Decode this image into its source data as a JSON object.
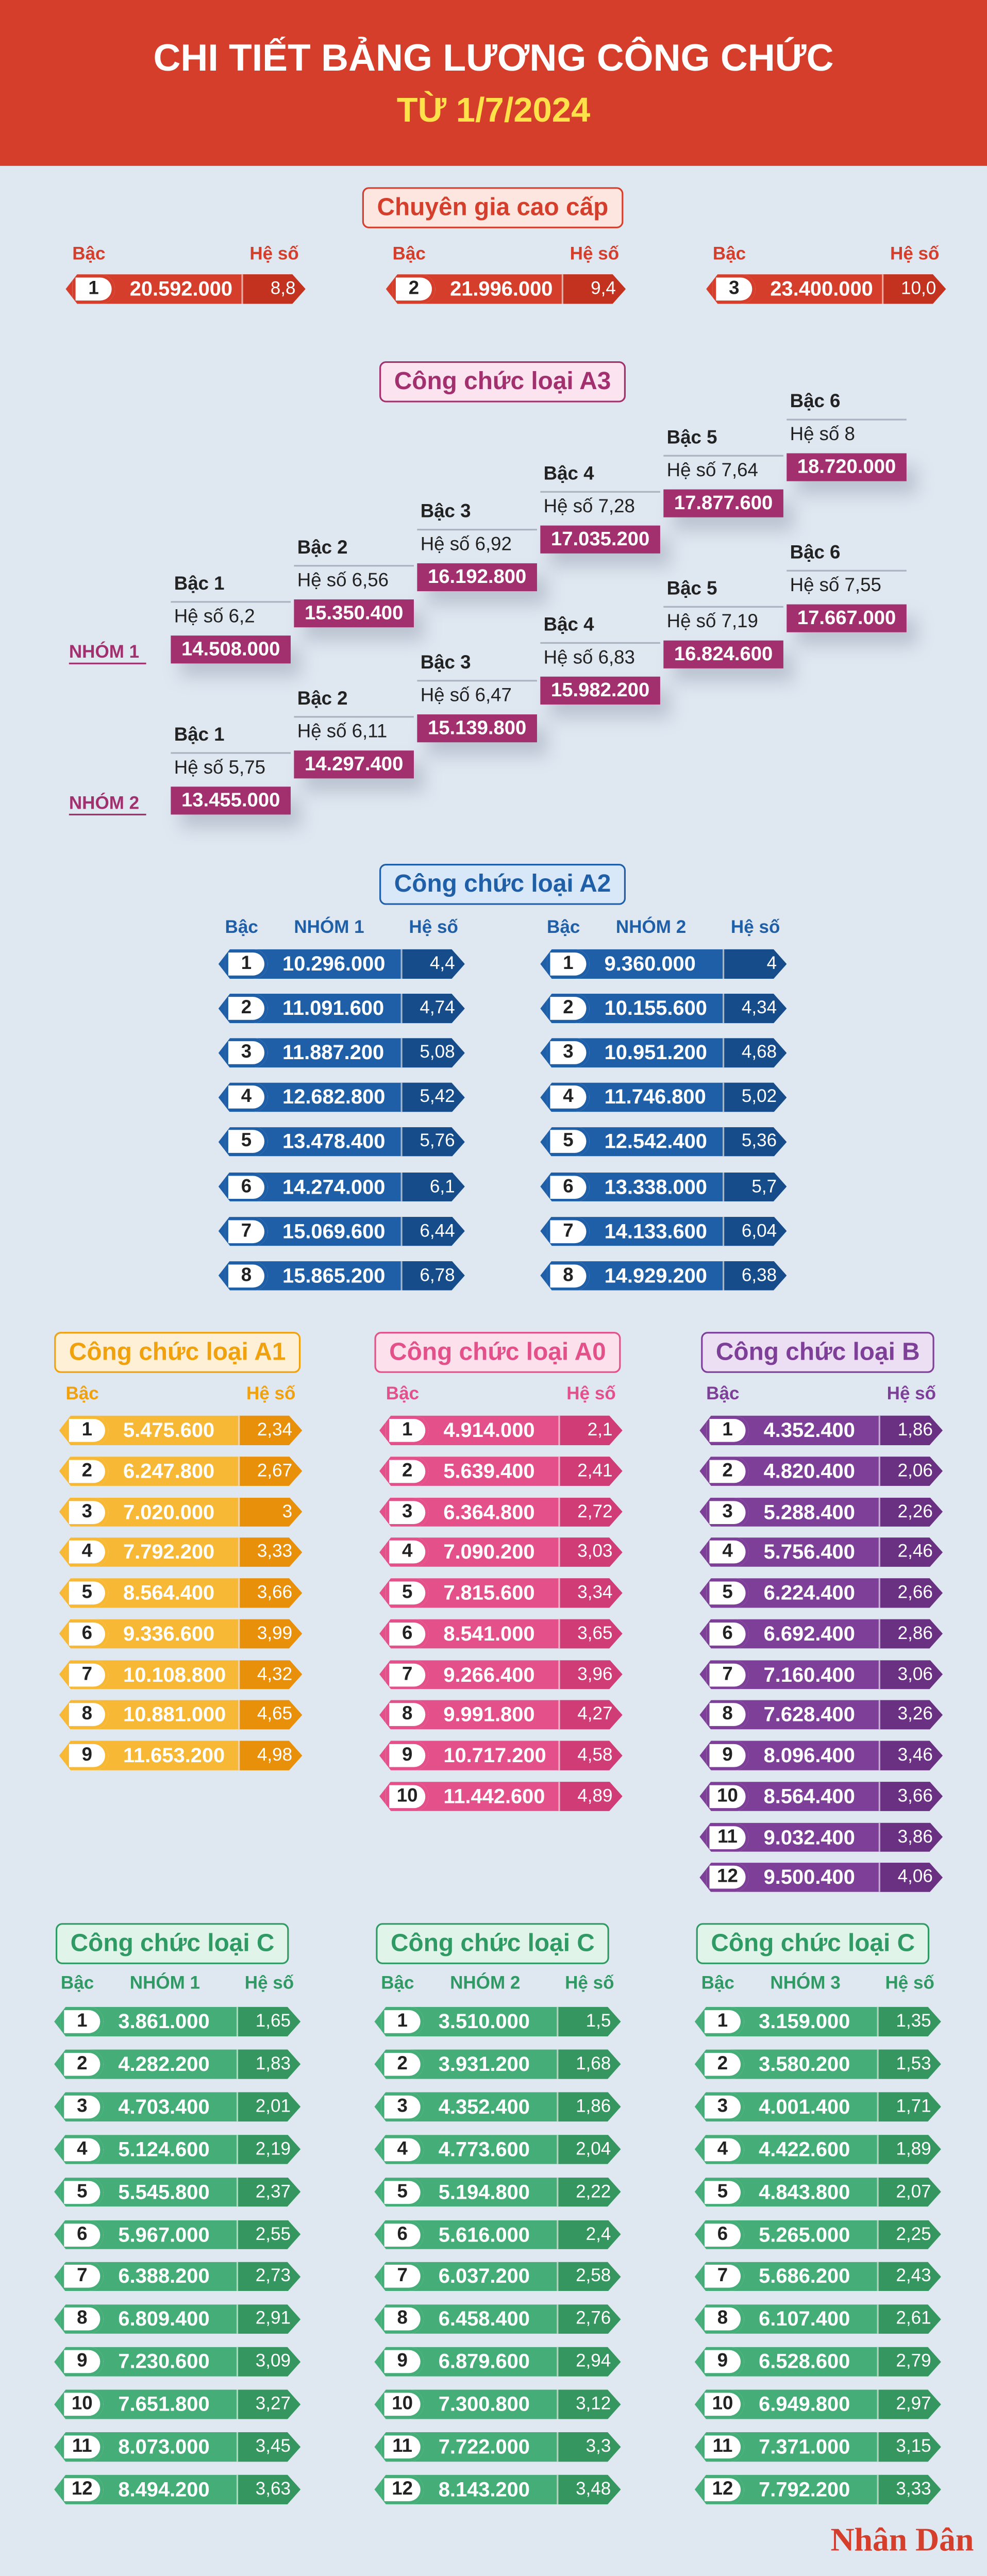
{
  "header": {
    "title": "CHI TIẾT BẢNG LƯƠNG CÔNG CHỨC",
    "subtitle": "TỪ 1/7/2024"
  },
  "labels": {
    "level": "Bậc",
    "coef": "Hệ số"
  },
  "expert": {
    "title": "Chuyên gia cao cấp",
    "rows": [
      [
        "1",
        "20.592.000",
        "8,8"
      ],
      [
        "2",
        "21.996.000",
        "9,4"
      ],
      [
        "3",
        "23.400.000",
        "10,0"
      ]
    ]
  },
  "grade_a3": {
    "title": "Công chức loại A3",
    "groups": [
      {
        "name": "NHÓM 1",
        "steps": [
          {
            "level": "Bậc 1",
            "coef": "Hệ số 6,2",
            "salary": "14.508.000"
          },
          {
            "level": "Bậc 2",
            "coef": "Hệ số 6,56",
            "salary": "15.350.400"
          },
          {
            "level": "Bậc 3",
            "coef": "Hệ số 6,92",
            "salary": "16.192.800"
          },
          {
            "level": "Bậc 4",
            "coef": "Hệ số 7,28",
            "salary": "17.035.200"
          },
          {
            "level": "Bậc 5",
            "coef": "Hệ số 7,64",
            "salary": "17.877.600"
          },
          {
            "level": "Bậc 6",
            "coef": "Hệ số 8",
            "salary": "18.720.000"
          }
        ]
      },
      {
        "name": "NHÓM 2",
        "steps": [
          {
            "level": "Bậc 1",
            "coef": "Hệ số 5,75",
            "salary": "13.455.000"
          },
          {
            "level": "Bậc 2",
            "coef": "Hệ số 6,11",
            "salary": "14.297.400"
          },
          {
            "level": "Bậc 3",
            "coef": "Hệ số 6,47",
            "salary": "15.139.800"
          },
          {
            "level": "Bậc 4",
            "coef": "Hệ số 6,83",
            "salary": "15.982.200"
          },
          {
            "level": "Bậc 5",
            "coef": "Hệ số 7,19",
            "salary": "16.824.600"
          },
          {
            "level": "Bậc 6",
            "coef": "Hệ số 7,55",
            "salary": "17.667.000"
          }
        ]
      }
    ]
  },
  "grade_a2": {
    "title": "Công chức loại A2",
    "groups": [
      {
        "name": "NHÓM 1",
        "rows": [
          [
            "1",
            "10.296.000",
            "4,4"
          ],
          [
            "2",
            "11.091.600",
            "4,74"
          ],
          [
            "3",
            "11.887.200",
            "5,08"
          ],
          [
            "4",
            "12.682.800",
            "5,42"
          ],
          [
            "5",
            "13.478.400",
            "5,76"
          ],
          [
            "6",
            "14.274.000",
            "6,1"
          ],
          [
            "7",
            "15.069.600",
            "6,44"
          ],
          [
            "8",
            "15.865.200",
            "6,78"
          ]
        ]
      },
      {
        "name": "NHÓM 2",
        "rows": [
          [
            "1",
            "9.360.000",
            "4"
          ],
          [
            "2",
            "10.155.600",
            "4,34"
          ],
          [
            "3",
            "10.951.200",
            "4,68"
          ],
          [
            "4",
            "11.746.800",
            "5,02"
          ],
          [
            "5",
            "12.542.400",
            "5,36"
          ],
          [
            "6",
            "13.338.000",
            "5,7"
          ],
          [
            "7",
            "14.133.600",
            "6,04"
          ],
          [
            "8",
            "14.929.200",
            "6,38"
          ]
        ]
      }
    ]
  },
  "grade_a1": {
    "title": "Công chức loại A1",
    "rows": [
      [
        "1",
        "5.475.600",
        "2,34"
      ],
      [
        "2",
        "6.247.800",
        "2,67"
      ],
      [
        "3",
        "7.020.000",
        "3"
      ],
      [
        "4",
        "7.792.200",
        "3,33"
      ],
      [
        "5",
        "8.564.400",
        "3,66"
      ],
      [
        "6",
        "9.336.600",
        "3,99"
      ],
      [
        "7",
        "10.108.800",
        "4,32"
      ],
      [
        "8",
        "10.881.000",
        "4,65"
      ],
      [
        "9",
        "11.653.200",
        "4,98"
      ]
    ]
  },
  "grade_a0": {
    "title": "Công chức loại A0",
    "rows": [
      [
        "1",
        "4.914.000",
        "2,1"
      ],
      [
        "2",
        "5.639.400",
        "2,41"
      ],
      [
        "3",
        "6.364.800",
        "2,72"
      ],
      [
        "4",
        "7.090.200",
        "3,03"
      ],
      [
        "5",
        "7.815.600",
        "3,34"
      ],
      [
        "6",
        "8.541.000",
        "3,65"
      ],
      [
        "7",
        "9.266.400",
        "3,96"
      ],
      [
        "8",
        "9.991.800",
        "4,27"
      ],
      [
        "9",
        "10.717.200",
        "4,58"
      ],
      [
        "10",
        "11.442.600",
        "4,89"
      ]
    ]
  },
  "grade_b": {
    "title": "Công chức loại B",
    "rows": [
      [
        "1",
        "4.352.400",
        "1,86"
      ],
      [
        "2",
        "4.820.400",
        "2,06"
      ],
      [
        "3",
        "5.288.400",
        "2,26"
      ],
      [
        "4",
        "5.756.400",
        "2,46"
      ],
      [
        "5",
        "6.224.400",
        "2,66"
      ],
      [
        "6",
        "6.692.400",
        "2,86"
      ],
      [
        "7",
        "7.160.400",
        "3,06"
      ],
      [
        "8",
        "7.628.400",
        "3,26"
      ],
      [
        "9",
        "8.096.400",
        "3,46"
      ],
      [
        "10",
        "8.564.400",
        "3,66"
      ],
      [
        "11",
        "9.032.400",
        "3,86"
      ],
      [
        "12",
        "9.500.400",
        "4,06"
      ]
    ]
  },
  "grade_c": {
    "title": "Công chức loại C",
    "groups": [
      {
        "name": "NHÓM 1",
        "rows": [
          [
            "1",
            "3.861.000",
            "1,65"
          ],
          [
            "2",
            "4.282.200",
            "1,83"
          ],
          [
            "3",
            "4.703.400",
            "2,01"
          ],
          [
            "4",
            "5.124.600",
            "2,19"
          ],
          [
            "5",
            "5.545.800",
            "2,37"
          ],
          [
            "6",
            "5.967.000",
            "2,55"
          ],
          [
            "7",
            "6.388.200",
            "2,73"
          ],
          [
            "8",
            "6.809.400",
            "2,91"
          ],
          [
            "9",
            "7.230.600",
            "3,09"
          ],
          [
            "10",
            "7.651.800",
            "3,27"
          ],
          [
            "11",
            "8.073.000",
            "3,45"
          ],
          [
            "12",
            "8.494.200",
            "3,63"
          ]
        ]
      },
      {
        "name": "NHÓM 2",
        "rows": [
          [
            "1",
            "3.510.000",
            "1,5"
          ],
          [
            "2",
            "3.931.200",
            "1,68"
          ],
          [
            "3",
            "4.352.400",
            "1,86"
          ],
          [
            "4",
            "4.773.600",
            "2,04"
          ],
          [
            "5",
            "5.194.800",
            "2,22"
          ],
          [
            "6",
            "5.616.000",
            "2,4"
          ],
          [
            "7",
            "6.037.200",
            "2,58"
          ],
          [
            "8",
            "6.458.400",
            "2,76"
          ],
          [
            "9",
            "6.879.600",
            "2,94"
          ],
          [
            "10",
            "7.300.800",
            "3,12"
          ],
          [
            "11",
            "7.722.000",
            "3,3"
          ],
          [
            "12",
            "8.143.200",
            "3,48"
          ]
        ]
      },
      {
        "name": "NHÓM 3",
        "rows": [
          [
            "1",
            "3.159.000",
            "1,35"
          ],
          [
            "2",
            "3.580.200",
            "1,53"
          ],
          [
            "3",
            "4.001.400",
            "1,71"
          ],
          [
            "4",
            "4.422.600",
            "1,89"
          ],
          [
            "5",
            "4.843.800",
            "2,07"
          ],
          [
            "6",
            "5.265.000",
            "2,25"
          ],
          [
            "7",
            "5.686.200",
            "2,43"
          ],
          [
            "8",
            "6.107.400",
            "2,61"
          ],
          [
            "9",
            "6.528.600",
            "2,79"
          ],
          [
            "10",
            "6.949.800",
            "2,97"
          ],
          [
            "11",
            "7.371.000",
            "3,15"
          ],
          [
            "12",
            "7.792.200",
            "3,33"
          ]
        ]
      }
    ]
  },
  "footer": {
    "logo": "Nhân Dân"
  }
}
